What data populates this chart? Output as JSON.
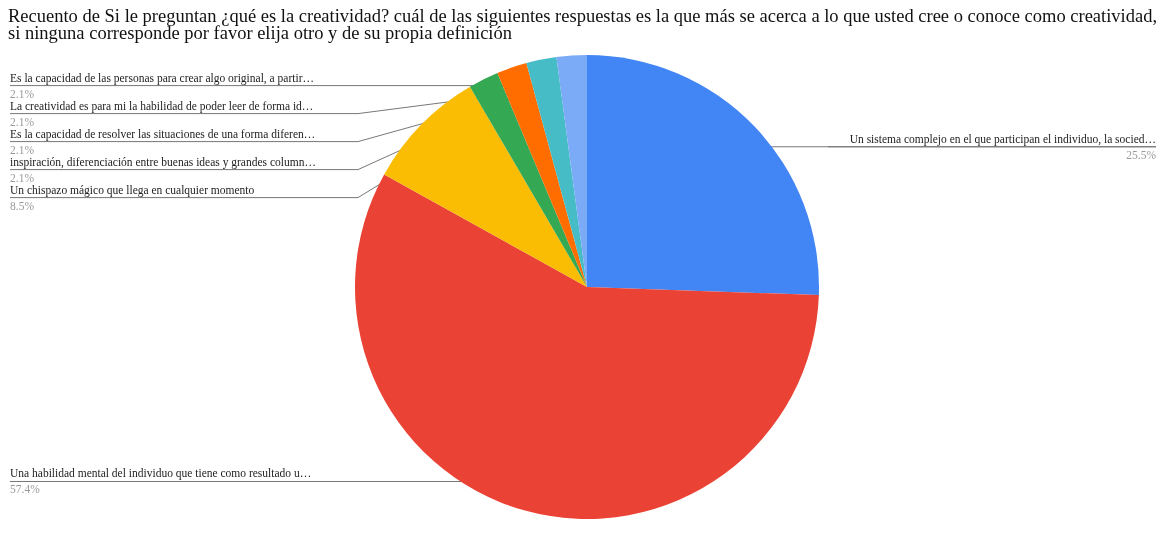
{
  "chart_data": {
    "type": "pie",
    "title": "Recuento de Si le preguntan ¿qué es la creatividad? cuál de las siguientes respuestas es la que más se acerca a lo que usted cree o conoce como creatividad, si ninguna corresponde por favor  elija otro y de su propia definición",
    "categories": [
      "Un sistema complejo en el que participan el individuo, la socied…",
      "Una habilidad mental del individuo que tiene como resultado u…",
      "Un chispazo mágico que llega en cualquier momento",
      "inspiración, diferenciación entre buenas ideas y grandes column…",
      "Es la capacidad de resolver las situaciones de una forma diferen…",
      "La creatividad es para mi la habilidad de poder leer de forma id…",
      "Es la capacidad de las personas para crear algo original, a partir…"
    ],
    "values": [
      25.5,
      57.4,
      8.5,
      2.1,
      2.1,
      2.1,
      2.1
    ],
    "colors": [
      "#4285f4",
      "#ea4335",
      "#fbbc04",
      "#34a853",
      "#ff6d01",
      "#46bdc6",
      "#7baaf7"
    ],
    "value_labels": [
      "25.5%",
      "57.4%",
      "8.5%",
      "2.1%",
      "2.1%",
      "2.1%",
      "2.1%"
    ]
  }
}
